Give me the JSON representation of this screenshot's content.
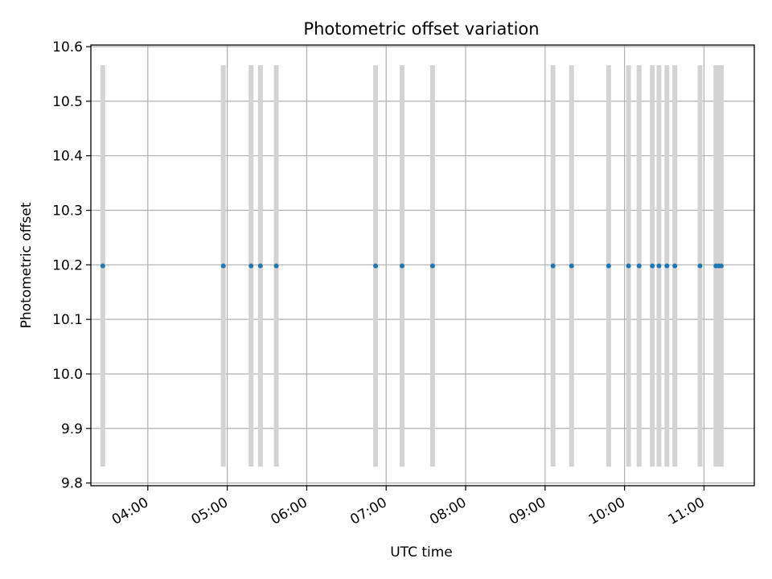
{
  "chart_data": {
    "type": "scatter",
    "title": "Photometric offset variation",
    "xlabel": "UTC time",
    "ylabel": "Photometric offset",
    "xlim": [
      "03:17",
      "11:38"
    ],
    "ylim": [
      9.795,
      10.603
    ],
    "grid": true,
    "x_ticks": [
      "04:00",
      "05:00",
      "06:00",
      "07:00",
      "08:00",
      "09:00",
      "10:00",
      "11:00"
    ],
    "y_ticks": [
      "9.8",
      "9.9",
      "10.0",
      "10.1",
      "10.2",
      "10.3",
      "10.4",
      "10.5",
      "10.6"
    ],
    "series": [
      {
        "marker_color": "#1f77b4",
        "errorbar_color": "#d3d3d3",
        "x": [
          "03:26",
          "04:57",
          "05:18",
          "05:25",
          "05:37",
          "06:52",
          "07:12",
          "07:35",
          "09:06",
          "09:20",
          "09:48",
          "10:03",
          "10:11",
          "10:21",
          "10:26",
          "10:32",
          "10:38",
          "10:57",
          "11:09",
          "11:11",
          "11:13"
        ],
        "y": [
          10.198,
          10.198,
          10.198,
          10.198,
          10.198,
          10.198,
          10.198,
          10.198,
          10.198,
          10.198,
          10.198,
          10.198,
          10.198,
          10.198,
          10.198,
          10.198,
          10.198,
          10.198,
          10.198,
          10.198,
          10.198
        ],
        "y_error": 0.368
      }
    ]
  }
}
